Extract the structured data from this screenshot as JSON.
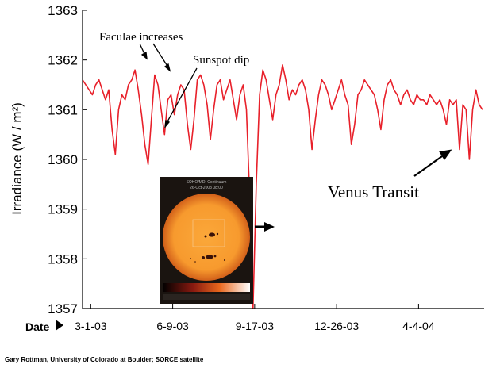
{
  "chart_data": {
    "type": "line",
    "ylabel": "Irradiance (W / m²)",
    "ylim": [
      1357,
      1363
    ],
    "y_ticks": [
      "1357",
      "1358",
      "1359",
      "1360",
      "1361",
      "1362",
      "1363"
    ],
    "x_axis_title": "Date",
    "x_ticks": [
      "3-1-03",
      "6-9-03",
      "9-17-03",
      "12-26-03",
      "4-4-04"
    ],
    "x_tick_dates": [
      "2003-03-01",
      "2003-06-09",
      "2003-09-17",
      "2003-12-26",
      "2004-04-04"
    ],
    "xlim": [
      "2003-02-19",
      "2004-06-23"
    ],
    "series_color": "#e8202a",
    "series": [
      {
        "x": [
          "2003-02-19",
          "2003-02-23",
          "2003-02-27",
          "2003-03-03",
          "2003-03-07",
          "2003-03-11",
          "2003-03-15",
          "2003-03-19",
          "2003-03-23",
          "2003-03-27",
          "2003-03-31",
          "2003-04-04",
          "2003-04-08",
          "2003-04-12",
          "2003-04-16",
          "2003-04-20",
          "2003-04-24",
          "2003-04-28",
          "2003-05-02",
          "2003-05-06",
          "2003-05-10",
          "2003-05-14",
          "2003-05-18",
          "2003-05-22",
          "2003-05-26",
          "2003-05-30",
          "2003-06-03",
          "2003-06-07",
          "2003-06-11",
          "2003-06-15",
          "2003-06-19",
          "2003-06-23",
          "2003-06-27",
          "2003-07-01",
          "2003-07-05",
          "2003-07-09",
          "2003-07-13",
          "2003-07-17",
          "2003-07-21",
          "2003-07-25",
          "2003-07-29",
          "2003-08-02",
          "2003-08-06",
          "2003-08-10",
          "2003-08-14",
          "2003-08-18",
          "2003-08-22",
          "2003-08-26",
          "2003-08-30",
          "2003-09-03",
          "2003-09-07",
          "2003-09-11",
          "2003-09-15",
          "2003-09-19",
          "2003-09-23",
          "2003-09-27",
          "2003-10-01",
          "2003-10-05",
          "2003-10-09",
          "2003-10-13",
          "2003-10-17",
          "2003-10-21",
          "2003-10-25",
          "2003-10-29",
          "2003-11-02",
          "2003-11-06",
          "2003-11-10",
          "2003-11-14",
          "2003-11-18",
          "2003-11-22",
          "2003-11-26",
          "2003-11-30",
          "2003-12-04",
          "2003-12-08",
          "2003-12-12",
          "2003-12-16",
          "2003-12-20",
          "2003-12-24",
          "2003-12-28",
          "2004-01-01",
          "2004-01-05",
          "2004-01-09",
          "2004-01-13",
          "2004-01-17",
          "2004-01-21",
          "2004-01-25",
          "2004-01-29",
          "2004-02-02",
          "2004-02-06",
          "2004-02-10",
          "2004-02-14",
          "2004-02-18",
          "2004-02-22",
          "2004-02-26",
          "2004-03-01",
          "2004-03-05",
          "2004-03-09",
          "2004-03-13",
          "2004-03-17",
          "2004-03-21",
          "2004-03-25",
          "2004-03-29",
          "2004-04-02",
          "2004-04-06",
          "2004-04-10",
          "2004-04-14",
          "2004-04-18",
          "2004-04-22",
          "2004-04-26",
          "2004-04-30",
          "2004-05-04",
          "2004-05-08",
          "2004-05-12",
          "2004-05-16",
          "2004-05-20",
          "2004-05-24",
          "2004-05-28",
          "2004-06-01",
          "2004-06-05",
          "2004-06-09",
          "2004-06-13",
          "2004-06-17",
          "2004-06-21"
        ],
        "values": [
          1361.6,
          1361.5,
          1361.4,
          1361.3,
          1361.5,
          1361.6,
          1361.4,
          1361.2,
          1361.4,
          1360.6,
          1360.1,
          1361.0,
          1361.3,
          1361.2,
          1361.5,
          1361.6,
          1361.8,
          1361.4,
          1360.9,
          1360.3,
          1359.9,
          1360.8,
          1361.7,
          1361.5,
          1361.0,
          1360.5,
          1361.2,
          1361.3,
          1360.9,
          1361.3,
          1361.5,
          1361.4,
          1360.7,
          1360.2,
          1360.8,
          1361.6,
          1361.7,
          1361.5,
          1361.1,
          1360.4,
          1361.0,
          1361.5,
          1361.6,
          1361.2,
          1361.4,
          1361.6,
          1361.2,
          1360.8,
          1361.3,
          1361.5,
          1361.0,
          1359.2,
          1357.0,
          1359.5,
          1361.3,
          1361.8,
          1361.6,
          1361.2,
          1360.8,
          1361.3,
          1361.5,
          1361.9,
          1361.6,
          1361.2,
          1361.4,
          1361.3,
          1361.5,
          1361.6,
          1361.4,
          1361.0,
          1360.2,
          1360.8,
          1361.3,
          1361.6,
          1361.5,
          1361.3,
          1361.0,
          1361.2,
          1361.4,
          1361.6,
          1361.3,
          1361.1,
          1360.3,
          1360.7,
          1361.3,
          1361.4,
          1361.6,
          1361.5,
          1361.4,
          1361.3,
          1361.0,
          1360.6,
          1361.2,
          1361.5,
          1361.6,
          1361.4,
          1361.3,
          1361.1,
          1361.3,
          1361.4,
          1361.2,
          1361.1,
          1361.3,
          1361.2,
          1361.2,
          1361.1,
          1361.3,
          1361.2,
          1361.1,
          1361.2,
          1361.0,
          1360.7,
          1361.2,
          1361.1,
          1361.2,
          1360.2,
          1361.1,
          1361.0,
          1360.0,
          1361.0,
          1361.4,
          1361.1,
          1361.0
        ]
      }
    ],
    "annotations": [
      "Faculae increases",
      "Sunspot dip",
      "Venus Transit"
    ]
  },
  "inset": {
    "title_line1": "SOHO/MDI Continuum",
    "title_line2": "26-Oct-2003 08:00",
    "colors": {
      "sun": "#f79a2e",
      "sun_edge": "#d2601a",
      "background": "#1a1410"
    }
  },
  "credit": "Gary Rottman, University of Colorado at Boulder; SORCE satellite"
}
